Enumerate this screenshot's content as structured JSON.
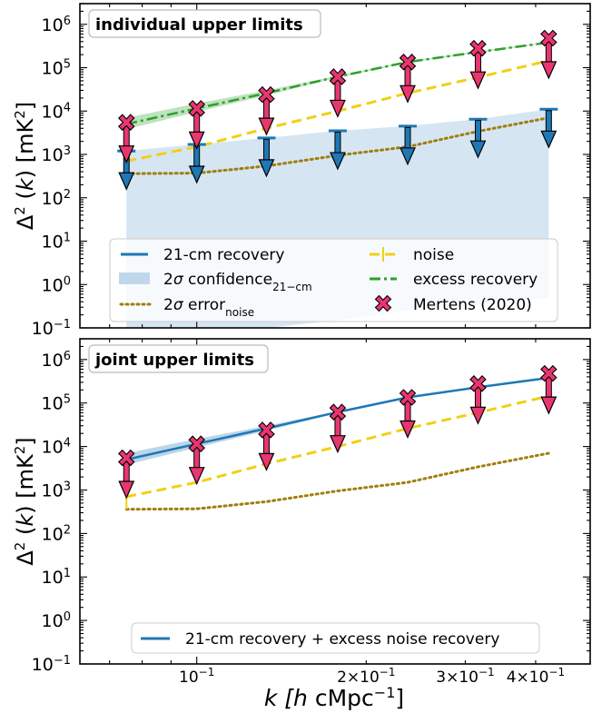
{
  "figure": {
    "xlabel_pre": "k [",
    "xlabel_h": "h",
    "xlabel_unit": " cMpc",
    "xlabel_exp": "−1",
    "xlabel_post": "]",
    "x_tick_labels": [
      {
        "value": 0.1,
        "base": "10",
        "exp": "−1"
      },
      {
        "value": 0.2,
        "base": "2×10",
        "exp": "−1"
      },
      {
        "value": 0.3,
        "base": "3×10",
        "exp": "−1"
      },
      {
        "value": 0.4,
        "base": "4×10",
        "exp": "−1"
      }
    ]
  },
  "chart_data": [
    {
      "type": "line",
      "title": "individual upper limits",
      "ylabel": "Δ² (k) [mK²]",
      "x_scale": "log",
      "y_scale": "log",
      "xlim": [
        0.062,
        0.5
      ],
      "ylim": [
        0.1,
        3000000
      ],
      "y_tick_exponents": [
        -1,
        0,
        1,
        2,
        3,
        4,
        5,
        6
      ],
      "k": [
        0.075,
        0.1,
        0.133,
        0.178,
        0.237,
        0.316,
        0.422
      ],
      "series": [
        {
          "name": "21-cm recovery",
          "kind": "upper_limit",
          "color": "#1f77b4",
          "values": [
            1200,
            1700,
            2400,
            3500,
            4500,
            6500,
            11000
          ]
        },
        {
          "name": "2σ confidence",
          "name_sub": "21−cm",
          "kind": "band",
          "color": "#b9d3e9",
          "lower": [
            0.03,
            0.07,
            0.1,
            0.15,
            0.25,
            0.35,
            0.5
          ],
          "upper": [
            1200,
            1700,
            2400,
            3500,
            4500,
            6500,
            11000
          ]
        },
        {
          "name": "2σ error",
          "name_sub": "noise",
          "kind": "dotted",
          "color": "#a17d0c",
          "values": [
            360,
            370,
            540,
            950,
            1500,
            3400,
            7000
          ]
        },
        {
          "name": "noise",
          "kind": "dashed",
          "color": "#f0d016",
          "values": [
            700,
            1500,
            4000,
            10000,
            26000,
            60000,
            145000
          ]
        },
        {
          "name": "excess recovery",
          "kind": "dashdot",
          "color": "#2ca02c",
          "values": [
            5000,
            11500,
            26000,
            62000,
            135000,
            230000,
            380000
          ],
          "band_upper": [
            7000,
            15000,
            30000,
            65000,
            140000,
            240000,
            390000
          ],
          "band_lower": [
            3800,
            9500,
            23000,
            59000,
            130000,
            222000,
            370000
          ]
        },
        {
          "name": "Mertens (2020)",
          "kind": "marker_limit",
          "color": "#e8366f",
          "values": [
            5500,
            11500,
            24000,
            62000,
            135000,
            280000,
            480000
          ]
        }
      ],
      "legend": "lower-center"
    },
    {
      "type": "line",
      "title": "joint upper limits",
      "ylabel": "Δ² (k) [mK²]",
      "x_scale": "log",
      "y_scale": "log",
      "xlim": [
        0.062,
        0.5
      ],
      "ylim": [
        0.1,
        3000000
      ],
      "y_tick_exponents": [
        -1,
        0,
        1,
        2,
        3,
        4,
        5,
        6
      ],
      "k": [
        0.075,
        0.1,
        0.133,
        0.178,
        0.237,
        0.316,
        0.422
      ],
      "series": [
        {
          "name": "21-cm recovery + excess noise recovery",
          "kind": "solid",
          "color": "#1f77b4",
          "values": [
            5000,
            11500,
            26000,
            62000,
            135000,
            230000,
            380000
          ],
          "band_upper": [
            7000,
            15000,
            30000,
            65000,
            140000,
            240000,
            390000
          ],
          "band_lower": [
            3800,
            9500,
            23000,
            59000,
            130000,
            222000,
            370000
          ]
        },
        {
          "name": "",
          "kind": "dotted",
          "color": "#a17d0c",
          "values": [
            360,
            370,
            540,
            950,
            1500,
            3400,
            7000
          ]
        },
        {
          "name": "",
          "kind": "dashed",
          "color": "#f0d016",
          "values": [
            700,
            1500,
            4000,
            10000,
            26000,
            60000,
            145000
          ]
        },
        {
          "name": "",
          "kind": "marker_limit",
          "color": "#e8366f",
          "values": [
            5500,
            11500,
            24000,
            62000,
            135000,
            280000,
            480000
          ]
        }
      ],
      "legend": "lower-center"
    }
  ]
}
